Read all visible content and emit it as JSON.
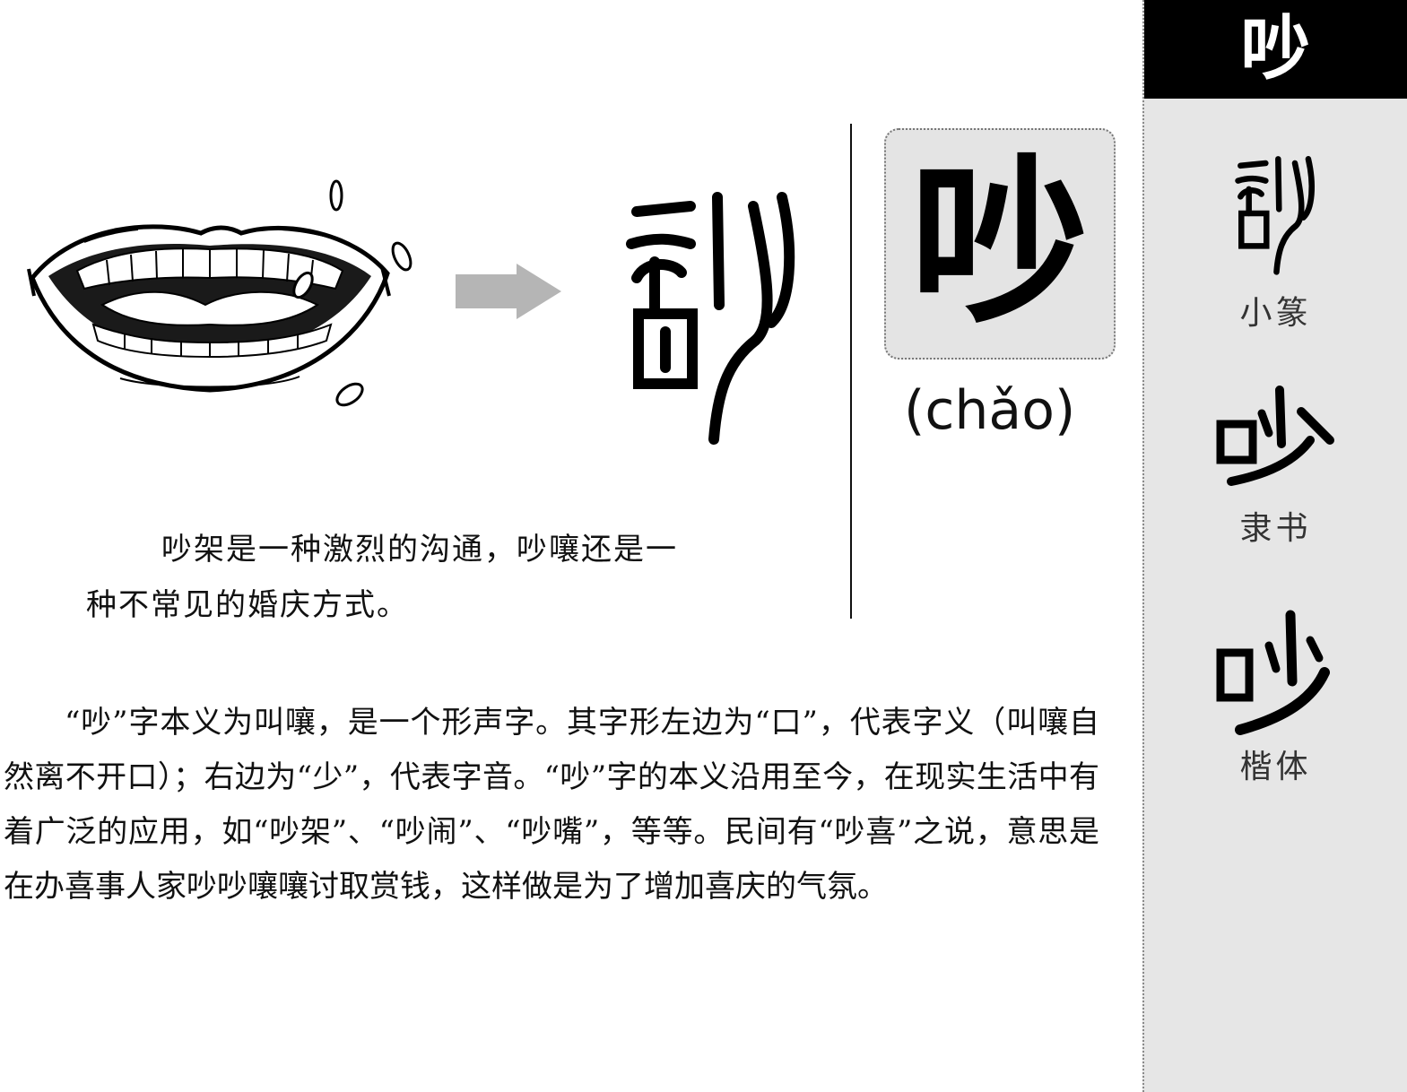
{
  "sidebar": {
    "header_char": "吵",
    "styles": [
      {
        "label": "小篆",
        "icon": "seal-script-chao-icon"
      },
      {
        "label": "隶书",
        "icon": "clerical-script-chao-icon"
      },
      {
        "label": "楷体",
        "icon": "regular-script-chao-icon"
      }
    ]
  },
  "illustration": {
    "mouth_icon": "shouting-mouth-icon",
    "arrow_icon": "right-arrow-icon",
    "seal_icon": "seal-script-chao-icon"
  },
  "character": {
    "glyph": "吵",
    "pinyin": "(chǎo)"
  },
  "caption": {
    "line1": "吵架是一种激烈的沟通，吵嚷还是一",
    "line2": "种不常见的婚庆方式。"
  },
  "body": {
    "paragraph": "“吵”字本义为叫嚷，是一个形声字。其字形左边为“口”，代表字义（叫嚷自然离不开口）；右边为“少”，代表字音。“吵”字的本义沿用至今，在现实生活中有着广泛的应用，如“吵架”、“吵闹”、“吵嘴”，等等。民间有“吵喜”之说，意思是在办喜事人家吵吵嚷嚷讨取赏钱，这样做是为了增加喜庆的气氛。"
  }
}
